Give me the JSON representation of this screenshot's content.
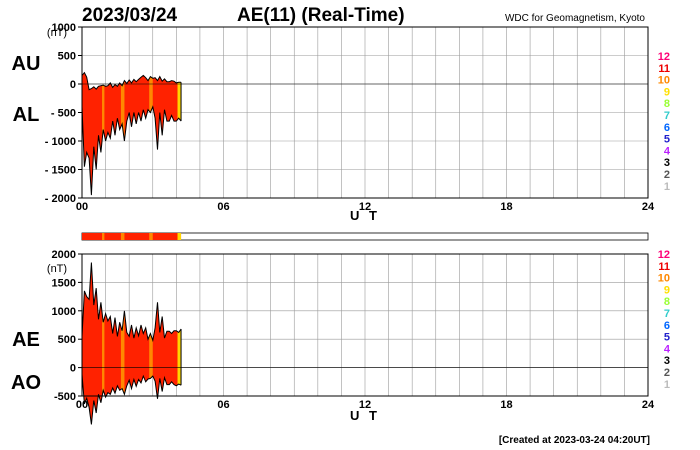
{
  "header": {
    "date": "2023/03/24",
    "title": "AE(11) (Real-Time)",
    "credit": "WDC for Geomagnetism, Kyoto"
  },
  "footer": {
    "created": "[Created at 2023-03-24 04:20UT]"
  },
  "colors": {
    "fill_red": "#ff2200",
    "fill_orange": "#ff8800",
    "fill_yellow": "#ffd500",
    "grid": "#9a9a9a"
  },
  "legend": [
    {
      "label": "12",
      "color": "#ff0077"
    },
    {
      "label": "11",
      "color": "#ee0000"
    },
    {
      "label": "10",
      "color": "#ff8800"
    },
    {
      "label": "9",
      "color": "#ffe000"
    },
    {
      "label": "8",
      "color": "#99ff33"
    },
    {
      "label": "7",
      "color": "#33cccc"
    },
    {
      "label": "6",
      "color": "#0066ff"
    },
    {
      "label": "5",
      "color": "#2222cc"
    },
    {
      "label": "4",
      "color": "#bb22ff"
    },
    {
      "label": "3",
      "color": "#000000"
    },
    {
      "label": "2",
      "color": "#555555"
    },
    {
      "label": "1",
      "color": "#bbbbbb"
    }
  ],
  "chart_data": [
    {
      "type": "area",
      "ylabel_unit": "(nT)",
      "series_labels": [
        "AU",
        "AL"
      ],
      "xlabel": "U T",
      "x_ticks": [
        "00",
        "06",
        "12",
        "18",
        "24"
      ],
      "y_ticks": [
        "1000",
        "500",
        "0",
        "- 500",
        "- 1000",
        "- 1500",
        "- 2000"
      ],
      "ylim": [
        -2000,
        1000
      ],
      "xlim": [
        0,
        24
      ],
      "grid": true,
      "series": [
        {
          "name": "AU",
          "x": [
            0,
            0.1,
            0.2,
            0.3,
            0.4,
            0.5,
            0.6,
            0.7,
            0.8,
            0.9,
            1.0,
            1.1,
            1.2,
            1.3,
            1.4,
            1.5,
            1.6,
            1.7,
            1.8,
            1.9,
            2.0,
            2.1,
            2.2,
            2.3,
            2.4,
            2.5,
            2.6,
            2.7,
            2.8,
            2.9,
            3.0,
            3.1,
            3.2,
            3.3,
            3.4,
            3.5,
            3.6,
            3.7,
            3.8,
            3.9,
            4.0,
            4.1,
            4.2
          ],
          "values": [
            150,
            200,
            120,
            -100,
            -80,
            -50,
            -90,
            -40,
            -30,
            -20,
            -40,
            -30,
            20,
            -60,
            -10,
            -40,
            20,
            -30,
            60,
            10,
            70,
            20,
            80,
            40,
            80,
            120,
            150,
            110,
            60,
            130,
            100,
            110,
            60,
            130,
            50,
            90,
            40,
            40,
            60,
            50,
            20,
            30,
            30
          ]
        },
        {
          "name": "AL",
          "x": [
            0,
            0.1,
            0.2,
            0.3,
            0.4,
            0.5,
            0.6,
            0.7,
            0.8,
            0.9,
            1.0,
            1.1,
            1.2,
            1.3,
            1.4,
            1.5,
            1.6,
            1.7,
            1.8,
            1.9,
            2.0,
            2.1,
            2.2,
            2.3,
            2.4,
            2.5,
            2.6,
            2.7,
            2.8,
            2.9,
            3.0,
            3.1,
            3.2,
            3.3,
            3.4,
            3.5,
            3.6,
            3.7,
            3.8,
            3.9,
            4.0,
            4.1,
            4.2
          ],
          "values": [
            -400,
            -1450,
            -1200,
            -1300,
            -1950,
            -1100,
            -1500,
            -900,
            -1200,
            -800,
            -1000,
            -850,
            -950,
            -650,
            -900,
            -600,
            -800,
            -700,
            -1000,
            -650,
            -500,
            -750,
            -500,
            -700,
            -500,
            -650,
            -450,
            -600,
            -450,
            -500,
            -400,
            -600,
            -1150,
            -500,
            -900,
            -450,
            -650,
            -650,
            -550,
            -650,
            -650,
            -600,
            -650
          ]
        }
      ]
    },
    {
      "type": "area",
      "ylabel_unit": "(nT)",
      "series_labels": [
        "AE",
        "AO"
      ],
      "xlabel": "U T",
      "x_ticks": [
        "00",
        "06",
        "12",
        "18",
        "24"
      ],
      "y_ticks": [
        "2000",
        "1500",
        "1000",
        "500",
        "0",
        "-500"
      ],
      "ylim": [
        -500,
        2000
      ],
      "xlim": [
        0,
        24
      ],
      "grid": true,
      "series": [
        {
          "name": "AE",
          "x": [
            0,
            0.1,
            0.2,
            0.3,
            0.4,
            0.5,
            0.6,
            0.7,
            0.8,
            0.9,
            1.0,
            1.1,
            1.2,
            1.3,
            1.4,
            1.5,
            1.6,
            1.7,
            1.8,
            1.9,
            2.0,
            2.1,
            2.2,
            2.3,
            2.4,
            2.5,
            2.6,
            2.7,
            2.8,
            2.9,
            3.0,
            3.1,
            3.2,
            3.3,
            3.4,
            3.5,
            3.6,
            3.7,
            3.8,
            3.9,
            4.0,
            4.1,
            4.2
          ],
          "values": [
            550,
            1350,
            1250,
            1200,
            1850,
            1100,
            1400,
            850,
            1150,
            800,
            950,
            820,
            900,
            600,
            880,
            550,
            800,
            650,
            1000,
            620,
            550,
            750,
            520,
            700,
            560,
            750,
            600,
            700,
            500,
            600,
            480,
            700,
            1150,
            620,
            900,
            520,
            640,
            640,
            600,
            650,
            650,
            620,
            680
          ]
        },
        {
          "name": "AO",
          "x": [
            0,
            0.1,
            0.2,
            0.3,
            0.4,
            0.5,
            0.6,
            0.7,
            0.8,
            0.9,
            1.0,
            1.1,
            1.2,
            1.3,
            1.4,
            1.5,
            1.6,
            1.7,
            1.8,
            1.9,
            2.0,
            2.1,
            2.2,
            2.3,
            2.4,
            2.5,
            2.6,
            2.7,
            2.8,
            2.9,
            3.0,
            3.1,
            3.2,
            3.3,
            3.4,
            3.5,
            3.6,
            3.7,
            3.8,
            3.9,
            4.0,
            4.1,
            4.2
          ],
          "values": [
            -120,
            -640,
            -540,
            -700,
            -1000,
            -580,
            -800,
            -470,
            -620,
            -400,
            -520,
            -440,
            -470,
            -360,
            -450,
            -320,
            -400,
            -370,
            -470,
            -320,
            -220,
            -370,
            -210,
            -330,
            -210,
            -270,
            -150,
            -250,
            -200,
            -190,
            -150,
            -240,
            -550,
            -190,
            -420,
            -180,
            -300,
            -300,
            -250,
            -300,
            -320,
            -290,
            -310
          ]
        }
      ]
    }
  ]
}
